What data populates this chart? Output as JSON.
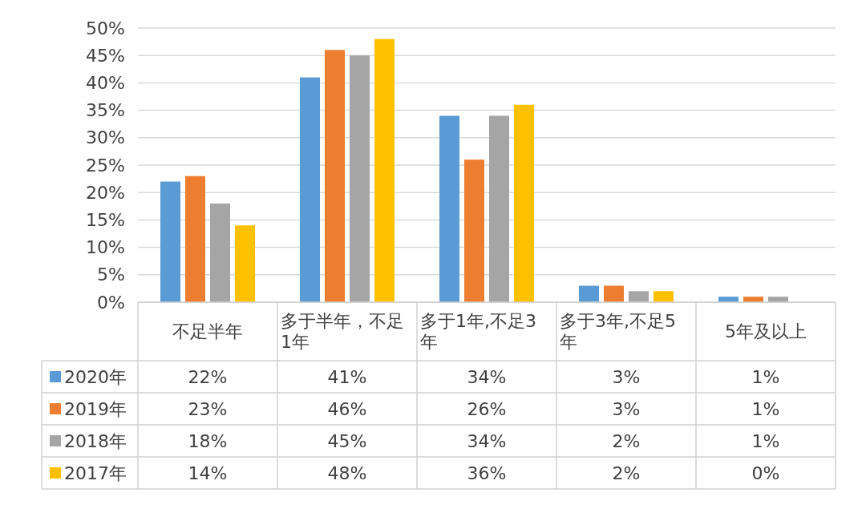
{
  "chart_data": {
    "type": "bar",
    "categories": [
      "不足半年",
      "多于半年，不足1年",
      "多于1年,不足3年",
      "多于3年,不足5年",
      "5年及以上"
    ],
    "series": [
      {
        "name": "2020年",
        "color": "#5b9bd5",
        "values": [
          22,
          41,
          34,
          3,
          1
        ],
        "value_labels": [
          "22%",
          "41%",
          "34%",
          "3%",
          "1%"
        ]
      },
      {
        "name": "2019年",
        "color": "#ed7d31",
        "values": [
          23,
          46,
          26,
          3,
          1
        ],
        "value_labels": [
          "23%",
          "46%",
          "26%",
          "3%",
          "1%"
        ]
      },
      {
        "name": "2018年",
        "color": "#a5a5a5",
        "values": [
          18,
          45,
          34,
          2,
          1
        ],
        "value_labels": [
          "18%",
          "45%",
          "34%",
          "2%",
          "1%"
        ]
      },
      {
        "name": "2017年",
        "color": "#ffc000",
        "values": [
          14,
          48,
          36,
          2,
          0
        ],
        "value_labels": [
          "14%",
          "48%",
          "36%",
          "2%",
          "0%"
        ]
      }
    ],
    "ylim": [
      0,
      50
    ],
    "yticks": [
      {
        "value": 0,
        "label": "0%"
      },
      {
        "value": 5,
        "label": "5%"
      },
      {
        "value": 10,
        "label": "10%"
      },
      {
        "value": 15,
        "label": "15%"
      },
      {
        "value": 20,
        "label": "20%"
      },
      {
        "value": 25,
        "label": "25%"
      },
      {
        "value": 30,
        "label": "30%"
      },
      {
        "value": 35,
        "label": "35%"
      },
      {
        "value": 40,
        "label": "40%"
      },
      {
        "value": 45,
        "label": "45%"
      },
      {
        "value": 50,
        "label": "50%"
      }
    ],
    "grid": "y",
    "legend": "bottom"
  }
}
